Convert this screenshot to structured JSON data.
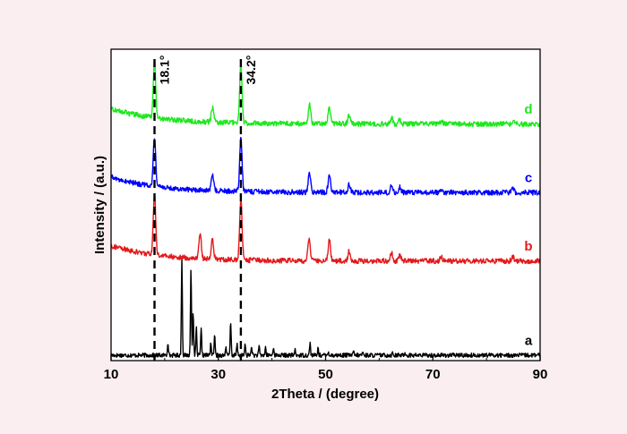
{
  "chart_data": {
    "type": "line",
    "xlabel": "2Theta / (degree)",
    "ylabel": "Intensity / (a.u.)",
    "xlim": [
      10,
      90
    ],
    "xticks": [
      10,
      30,
      50,
      70,
      90
    ],
    "yticks_shown": false,
    "reference_lines": [
      {
        "x": 18.1,
        "label": "18.1°",
        "style": "dashed"
      },
      {
        "x": 34.2,
        "label": "34.2°",
        "style": "dashed"
      }
    ],
    "series": [
      {
        "name": "a",
        "color": "#000000",
        "baseline": 0,
        "noise": 0.25,
        "peaks": [
          [
            20.6,
            1.6
          ],
          [
            23.2,
            11.5
          ],
          [
            24.9,
            10.2
          ],
          [
            25.3,
            5.2
          ],
          [
            25.9,
            3.2
          ],
          [
            26.8,
            3.0
          ],
          [
            28.6,
            1.5
          ],
          [
            29.3,
            2.4
          ],
          [
            31.4,
            1.0
          ],
          [
            32.3,
            3.9
          ],
          [
            33.5,
            1.3
          ],
          [
            35.0,
            1.2
          ],
          [
            36.2,
            1.1
          ],
          [
            37.6,
            1.0
          ],
          [
            38.8,
            0.9
          ],
          [
            40.3,
            1.0
          ],
          [
            44.3,
            0.6
          ],
          [
            47.1,
            1.5
          ],
          [
            48.6,
            0.8
          ],
          [
            50.5,
            0.5
          ],
          [
            55.2,
            0.4
          ],
          [
            56.9,
            0.4
          ],
          [
            62.5,
            0.3
          ],
          [
            64.8,
            0.3
          ]
        ]
      },
      {
        "name": "b",
        "color": "#e31a1c",
        "baseline": 11,
        "noise": 0.3,
        "bg": 1.8,
        "peaks": [
          [
            18.1,
            7.2
          ],
          [
            26.6,
            3.0
          ],
          [
            28.9,
            2.3
          ],
          [
            34.2,
            7.2
          ],
          [
            46.9,
            2.6
          ],
          [
            50.7,
            2.4
          ],
          [
            54.4,
            1.2
          ],
          [
            62.3,
            0.9
          ],
          [
            63.8,
            0.7
          ],
          [
            71.6,
            0.5
          ],
          [
            84.9,
            0.5
          ]
        ]
      },
      {
        "name": "c",
        "color": "#0000ff",
        "baseline": 19,
        "noise": 0.3,
        "bg": 1.8,
        "peaks": [
          [
            18.1,
            5.8
          ],
          [
            28.9,
            1.8
          ],
          [
            34.2,
            6.1
          ],
          [
            47.0,
            2.3
          ],
          [
            50.7,
            2.0
          ],
          [
            54.4,
            1.0
          ],
          [
            62.3,
            0.8
          ],
          [
            63.8,
            0.6
          ],
          [
            71.6,
            0.4
          ],
          [
            84.9,
            0.4
          ]
        ]
      },
      {
        "name": "d",
        "color": "#1ee81e",
        "baseline": 27,
        "noise": 0.3,
        "bg": 1.8,
        "peaks": [
          [
            18.1,
            6.6
          ],
          [
            28.9,
            1.7
          ],
          [
            34.2,
            6.9
          ],
          [
            47.0,
            2.3
          ],
          [
            50.7,
            2.0
          ],
          [
            54.4,
            1.0
          ],
          [
            62.3,
            0.7
          ],
          [
            63.8,
            0.5
          ],
          [
            71.6,
            0.3
          ],
          [
            84.9,
            0.3
          ]
        ]
      }
    ]
  }
}
